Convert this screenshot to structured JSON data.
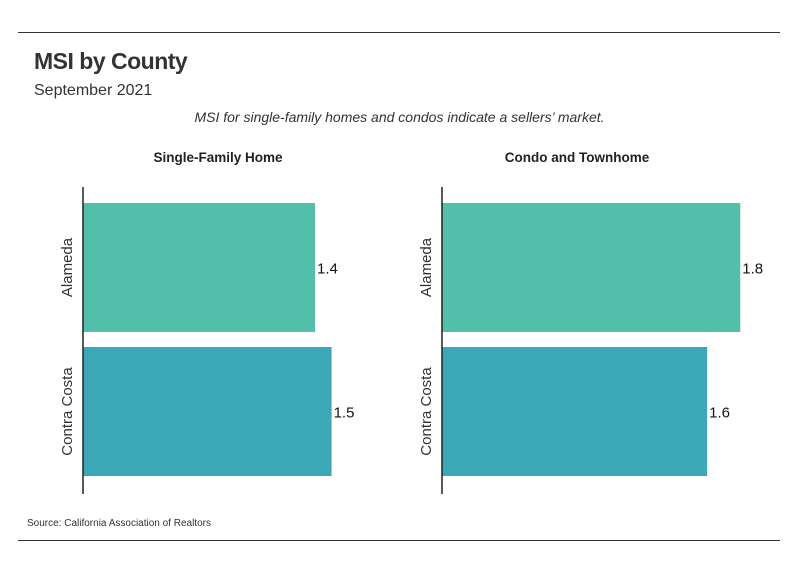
{
  "header": {
    "title": "MSI by County",
    "subtitle": "September 2021",
    "annotation": "MSI for single-family homes and condos indicate a sellers’ market."
  },
  "footer": {
    "source": "Source:  California Association of Realtors"
  },
  "colors": {
    "alameda": "#52bfaa",
    "contra_costa": "#3aa8b6",
    "axis": "#222222"
  },
  "chart_data": [
    {
      "type": "bar",
      "orientation": "horizontal",
      "title": "Single-Family Home",
      "categories": [
        "Alameda",
        "Contra Costa"
      ],
      "values": [
        1.4,
        1.5
      ],
      "value_labels": [
        "1.4",
        "1.5"
      ],
      "xlim": [
        0,
        2.0
      ]
    },
    {
      "type": "bar",
      "orientation": "horizontal",
      "title": "Condo and Townhome",
      "categories": [
        "Alameda",
        "Contra Costa"
      ],
      "values": [
        1.8,
        1.6
      ],
      "value_labels": [
        "1.8",
        "1.6"
      ],
      "xlim": [
        0,
        2.0
      ]
    }
  ]
}
